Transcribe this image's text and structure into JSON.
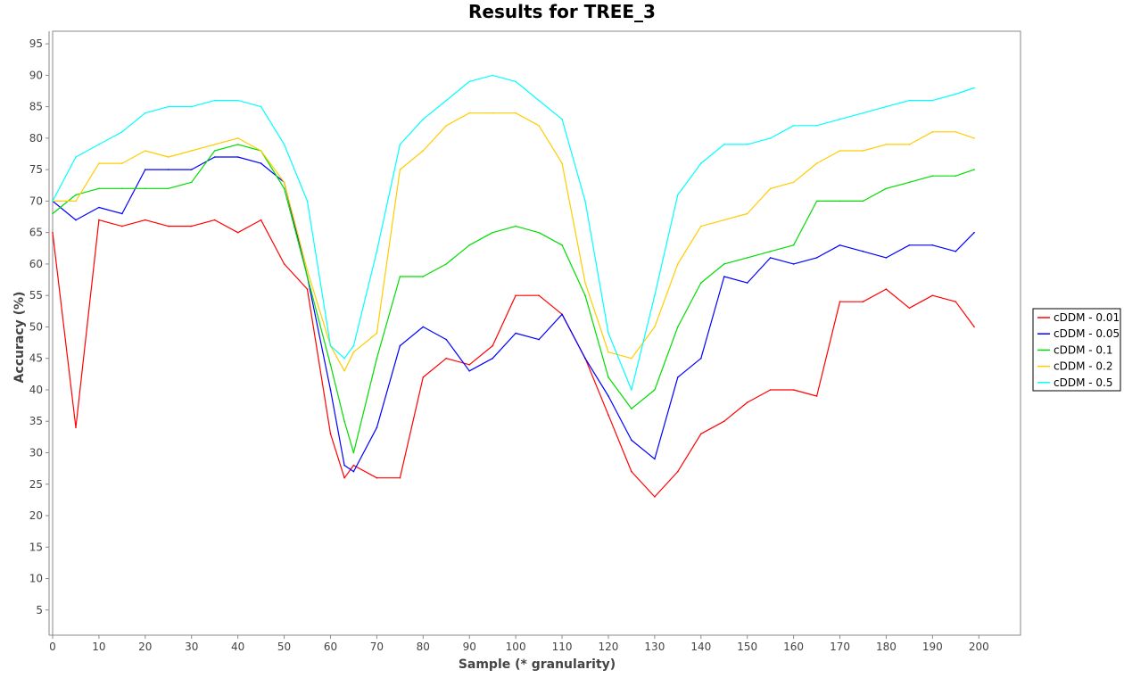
{
  "chart_data": {
    "type": "line",
    "title": "Results for TREE_3",
    "xlabel": "Sample (* granularity)",
    "ylabel": "Accuracy (%)",
    "xlim": [
      0,
      209
    ],
    "ylim": [
      1,
      97
    ],
    "xticks": [
      0,
      10,
      20,
      30,
      40,
      50,
      60,
      70,
      80,
      90,
      100,
      110,
      120,
      130,
      140,
      150,
      160,
      170,
      180,
      190,
      200
    ],
    "yticks": [
      5,
      10,
      15,
      20,
      25,
      30,
      35,
      40,
      45,
      50,
      55,
      60,
      65,
      70,
      75,
      80,
      85,
      90,
      95
    ],
    "grid": false,
    "legend_position": "right",
    "x": [
      0,
      5,
      10,
      15,
      20,
      25,
      30,
      35,
      40,
      45,
      50,
      55,
      60,
      63,
      65,
      70,
      75,
      80,
      85,
      90,
      95,
      100,
      105,
      110,
      115,
      120,
      125,
      130,
      135,
      140,
      145,
      150,
      155,
      160,
      165,
      170,
      175,
      180,
      185,
      190,
      195,
      199
    ],
    "series": [
      {
        "name": "cDDM - 0.01",
        "color": "#ff0000",
        "values": [
          65,
          34,
          67,
          66,
          67,
          66,
          66,
          67,
          65,
          67,
          60,
          56,
          33,
          26,
          28,
          26,
          26,
          42,
          45,
          44,
          47,
          55,
          55,
          52,
          45,
          36,
          27,
          23,
          27,
          33,
          35,
          38,
          40,
          40,
          39,
          54,
          54,
          56,
          53,
          55,
          54,
          50
        ]
      },
      {
        "name": "cDDM - 0.05",
        "color": "#0000ff",
        "values": [
          70,
          67,
          69,
          68,
          75,
          75,
          75,
          77,
          77,
          76,
          73,
          58,
          40,
          28,
          27,
          34,
          47,
          50,
          48,
          43,
          45,
          49,
          48,
          52,
          45,
          39,
          32,
          29,
          42,
          45,
          58,
          57,
          61,
          60,
          61,
          63,
          62,
          61,
          63,
          63,
          62,
          65
        ]
      },
      {
        "name": "cDDM - 0.1",
        "color": "#00dd00",
        "values": [
          68,
          71,
          72,
          72,
          72,
          72,
          73,
          78,
          79,
          78,
          72,
          58,
          44,
          35,
          30,
          45,
          58,
          58,
          60,
          63,
          65,
          66,
          65,
          63,
          55,
          42,
          37,
          40,
          50,
          57,
          60,
          61,
          62,
          63,
          70,
          70,
          70,
          72,
          73,
          74,
          74,
          75
        ]
      },
      {
        "name": "cDDM - 0.2",
        "color": "#ffcc00",
        "values": [
          70,
          70,
          76,
          76,
          78,
          77,
          78,
          79,
          80,
          78,
          73,
          59,
          47,
          43,
          46,
          49,
          75,
          78,
          82,
          84,
          84,
          84,
          82,
          76,
          57,
          46,
          45,
          50,
          60,
          66,
          67,
          68,
          72,
          73,
          76,
          78,
          78,
          79,
          79,
          81,
          81,
          80
        ]
      },
      {
        "name": "cDDM - 0.5",
        "color": "#00ffff",
        "values": [
          70,
          77,
          79,
          81,
          84,
          85,
          85,
          86,
          86,
          85,
          79,
          70,
          47,
          45,
          47,
          62,
          79,
          83,
          86,
          89,
          90,
          89,
          86,
          83,
          70,
          49,
          40,
          55,
          71,
          76,
          79,
          79,
          80,
          82,
          82,
          83,
          84,
          85,
          86,
          86,
          87,
          88
        ]
      }
    ]
  }
}
